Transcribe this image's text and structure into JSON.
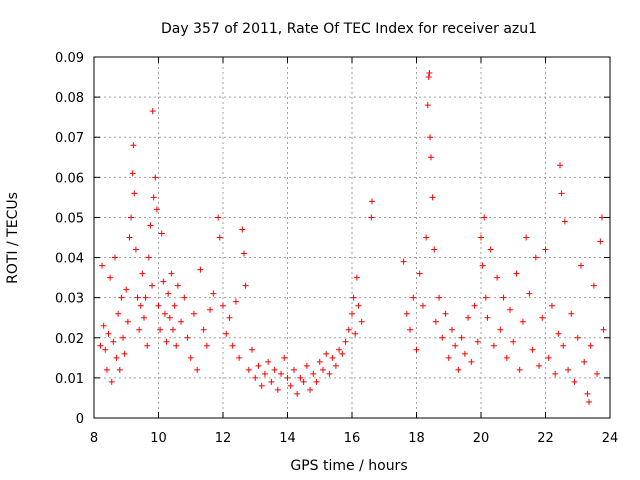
{
  "chart_data": {
    "type": "scatter",
    "title": "Day 357 of 2011, Rate Of TEC Index for receiver azu1",
    "xlabel": "GPS time / hours",
    "ylabel": "ROTI / TECUs",
    "xlim": [
      8,
      24
    ],
    "ylim": [
      0,
      0.09
    ],
    "grid": true,
    "marker": "+",
    "marker_color": "#ff0000",
    "x_ticks": [
      "8",
      "10",
      "12",
      "14",
      "16",
      "18",
      "20",
      "22",
      "24"
    ],
    "y_ticks": [
      "0",
      "0.01",
      "0.02",
      "0.03",
      "0.04",
      "0.05",
      "0.06",
      "0.07",
      "0.08",
      "0.09"
    ],
    "series": [
      {
        "name": "azu1",
        "points": [
          [
            8.2,
            0.018
          ],
          [
            8.25,
            0.038
          ],
          [
            8.3,
            0.023
          ],
          [
            8.35,
            0.017
          ],
          [
            8.4,
            0.012
          ],
          [
            8.45,
            0.021
          ],
          [
            8.5,
            0.035
          ],
          [
            8.55,
            0.009
          ],
          [
            8.6,
            0.019
          ],
          [
            8.65,
            0.04
          ],
          [
            8.7,
            0.015
          ],
          [
            8.75,
            0.026
          ],
          [
            8.8,
            0.012
          ],
          [
            8.85,
            0.03
          ],
          [
            8.9,
            0.02
          ],
          [
            8.95,
            0.016
          ],
          [
            9.0,
            0.032
          ],
          [
            9.05,
            0.024
          ],
          [
            9.1,
            0.045
          ],
          [
            9.15,
            0.05
          ],
          [
            9.2,
            0.061
          ],
          [
            9.22,
            0.068
          ],
          [
            9.25,
            0.056
          ],
          [
            9.3,
            0.042
          ],
          [
            9.35,
            0.03
          ],
          [
            9.4,
            0.022
          ],
          [
            9.45,
            0.028
          ],
          [
            9.5,
            0.036
          ],
          [
            9.55,
            0.025
          ],
          [
            9.6,
            0.03
          ],
          [
            9.65,
            0.018
          ],
          [
            9.7,
            0.04
          ],
          [
            9.75,
            0.048
          ],
          [
            9.8,
            0.033
          ],
          [
            9.82,
            0.0765
          ],
          [
            9.85,
            0.055
          ],
          [
            9.9,
            0.06
          ],
          [
            9.95,
            0.052
          ],
          [
            10.0,
            0.028
          ],
          [
            10.05,
            0.022
          ],
          [
            10.1,
            0.046
          ],
          [
            10.15,
            0.034
          ],
          [
            10.2,
            0.026
          ],
          [
            10.25,
            0.019
          ],
          [
            10.3,
            0.031
          ],
          [
            10.35,
            0.025
          ],
          [
            10.4,
            0.036
          ],
          [
            10.45,
            0.022
          ],
          [
            10.5,
            0.028
          ],
          [
            10.55,
            0.018
          ],
          [
            10.6,
            0.033
          ],
          [
            10.7,
            0.024
          ],
          [
            10.8,
            0.03
          ],
          [
            10.9,
            0.02
          ],
          [
            11.0,
            0.015
          ],
          [
            11.1,
            0.026
          ],
          [
            11.2,
            0.012
          ],
          [
            11.3,
            0.037
          ],
          [
            11.4,
            0.022
          ],
          [
            11.5,
            0.018
          ],
          [
            11.6,
            0.027
          ],
          [
            11.7,
            0.031
          ],
          [
            11.85,
            0.05
          ],
          [
            11.9,
            0.045
          ],
          [
            12.0,
            0.028
          ],
          [
            12.1,
            0.021
          ],
          [
            12.2,
            0.025
          ],
          [
            12.3,
            0.018
          ],
          [
            12.4,
            0.029
          ],
          [
            12.5,
            0.015
          ],
          [
            12.6,
            0.047
          ],
          [
            12.65,
            0.041
          ],
          [
            12.7,
            0.033
          ],
          [
            12.8,
            0.012
          ],
          [
            12.9,
            0.017
          ],
          [
            13.0,
            0.01
          ],
          [
            13.1,
            0.013
          ],
          [
            13.2,
            0.008
          ],
          [
            13.3,
            0.011
          ],
          [
            13.4,
            0.014
          ],
          [
            13.5,
            0.009
          ],
          [
            13.6,
            0.012
          ],
          [
            13.7,
            0.007
          ],
          [
            13.8,
            0.011
          ],
          [
            13.9,
            0.015
          ],
          [
            14.0,
            0.01
          ],
          [
            14.1,
            0.008
          ],
          [
            14.2,
            0.012
          ],
          [
            14.3,
            0.006
          ],
          [
            14.4,
            0.01
          ],
          [
            14.5,
            0.009
          ],
          [
            14.6,
            0.013
          ],
          [
            14.7,
            0.007
          ],
          [
            14.8,
            0.011
          ],
          [
            14.9,
            0.009
          ],
          [
            15.0,
            0.014
          ],
          [
            15.1,
            0.012
          ],
          [
            15.2,
            0.016
          ],
          [
            15.3,
            0.011
          ],
          [
            15.4,
            0.015
          ],
          [
            15.5,
            0.013
          ],
          [
            15.6,
            0.017
          ],
          [
            15.7,
            0.016
          ],
          [
            15.8,
            0.019
          ],
          [
            15.9,
            0.022
          ],
          [
            16.0,
            0.026
          ],
          [
            16.05,
            0.03
          ],
          [
            16.1,
            0.021
          ],
          [
            16.15,
            0.035
          ],
          [
            16.2,
            0.028
          ],
          [
            16.3,
            0.024
          ],
          [
            16.6,
            0.05
          ],
          [
            16.62,
            0.054
          ],
          [
            17.6,
            0.039
          ],
          [
            17.7,
            0.026
          ],
          [
            17.8,
            0.022
          ],
          [
            17.9,
            0.03
          ],
          [
            18.0,
            0.017
          ],
          [
            18.1,
            0.036
          ],
          [
            18.2,
            0.028
          ],
          [
            18.3,
            0.045
          ],
          [
            18.35,
            0.078
          ],
          [
            18.38,
            0.085
          ],
          [
            18.4,
            0.086
          ],
          [
            18.42,
            0.07
          ],
          [
            18.45,
            0.065
          ],
          [
            18.5,
            0.055
          ],
          [
            18.55,
            0.042
          ],
          [
            18.6,
            0.024
          ],
          [
            18.7,
            0.03
          ],
          [
            18.8,
            0.02
          ],
          [
            18.9,
            0.026
          ],
          [
            19.0,
            0.015
          ],
          [
            19.1,
            0.022
          ],
          [
            19.2,
            0.018
          ],
          [
            19.3,
            0.012
          ],
          [
            19.4,
            0.02
          ],
          [
            19.5,
            0.016
          ],
          [
            19.6,
            0.025
          ],
          [
            19.7,
            0.014
          ],
          [
            19.8,
            0.028
          ],
          [
            19.9,
            0.019
          ],
          [
            20.0,
            0.045
          ],
          [
            20.05,
            0.038
          ],
          [
            20.1,
            0.05
          ],
          [
            20.15,
            0.03
          ],
          [
            20.2,
            0.025
          ],
          [
            20.3,
            0.042
          ],
          [
            20.4,
            0.018
          ],
          [
            20.5,
            0.035
          ],
          [
            20.6,
            0.022
          ],
          [
            20.7,
            0.03
          ],
          [
            20.8,
            0.015
          ],
          [
            20.9,
            0.027
          ],
          [
            21.0,
            0.019
          ],
          [
            21.1,
            0.036
          ],
          [
            21.2,
            0.012
          ],
          [
            21.3,
            0.024
          ],
          [
            21.4,
            0.045
          ],
          [
            21.5,
            0.031
          ],
          [
            21.6,
            0.017
          ],
          [
            21.7,
            0.04
          ],
          [
            21.8,
            0.013
          ],
          [
            21.9,
            0.025
          ],
          [
            22.0,
            0.042
          ],
          [
            22.1,
            0.015
          ],
          [
            22.2,
            0.028
          ],
          [
            22.3,
            0.011
          ],
          [
            22.4,
            0.021
          ],
          [
            22.45,
            0.063
          ],
          [
            22.5,
            0.056
          ],
          [
            22.55,
            0.018
          ],
          [
            22.6,
            0.049
          ],
          [
            22.7,
            0.012
          ],
          [
            22.8,
            0.026
          ],
          [
            22.9,
            0.009
          ],
          [
            23.0,
            0.02
          ],
          [
            23.1,
            0.038
          ],
          [
            23.2,
            0.014
          ],
          [
            23.3,
            0.006
          ],
          [
            23.35,
            0.004
          ],
          [
            23.4,
            0.018
          ],
          [
            23.5,
            0.033
          ],
          [
            23.6,
            0.011
          ],
          [
            23.7,
            0.044
          ],
          [
            23.75,
            0.05
          ],
          [
            23.8,
            0.022
          ]
        ]
      }
    ]
  }
}
